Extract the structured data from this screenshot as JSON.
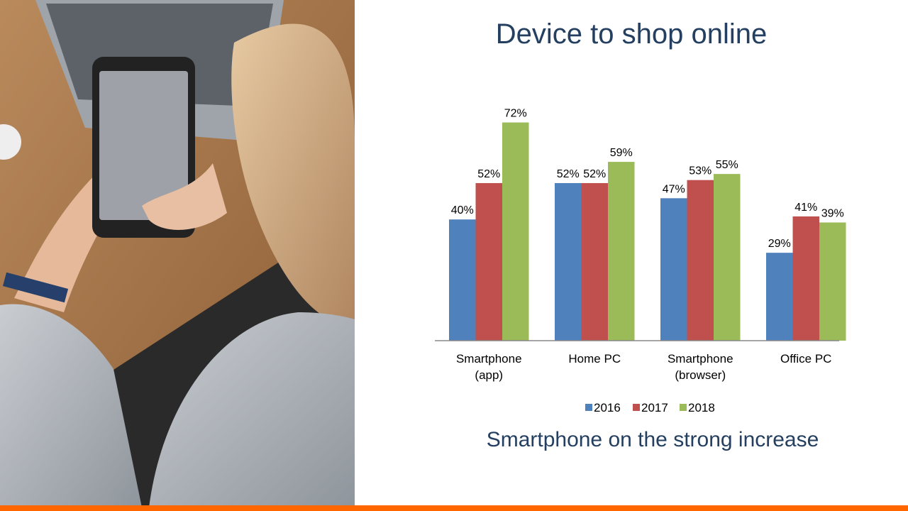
{
  "slide": {
    "title": "Device to shop online",
    "subtitle": "Smartphone on the strong increase",
    "accent_color": "#ff6600",
    "text_color": "#243f60"
  },
  "chart_data": {
    "type": "bar",
    "categories": [
      "Smartphone\n(app)",
      "Home PC",
      "Smartphone\n(browser)",
      "Office PC"
    ],
    "series": [
      {
        "name": "2016",
        "color": "#4f81bd",
        "values": [
          40,
          52,
          47,
          29
        ],
        "labels": [
          "40%",
          "52%",
          "47%",
          "29%"
        ]
      },
      {
        "name": "2017",
        "color": "#c0504d",
        "values": [
          52,
          52,
          53,
          41
        ],
        "labels": [
          "52%",
          "52%",
          "53%",
          "41%"
        ]
      },
      {
        "name": "2018",
        "color": "#9bbb59",
        "values": [
          72,
          59,
          55,
          39
        ],
        "labels": [
          "72%",
          "59%",
          "55%",
          "39%"
        ]
      }
    ],
    "ylim": [
      0,
      75
    ],
    "grid": false,
    "legend": "bottom",
    "unit": "%"
  }
}
